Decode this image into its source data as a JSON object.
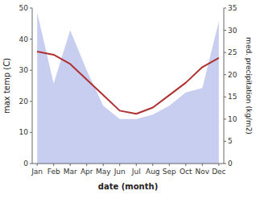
{
  "chart_data": {
    "type": "line",
    "xlabel": "date (month)",
    "ylabel": "max temp (C)",
    "y2label": "med. precipitation (kg/m2)",
    "categories": [
      "Jan",
      "Feb",
      "Mar",
      "Apr",
      "May",
      "Jun",
      "Jul",
      "Aug",
      "Sep",
      "Oct",
      "Nov",
      "Dec"
    ],
    "series": [
      {
        "type": "area",
        "axis": "y2",
        "color": "#aab4e8",
        "values": [
          34,
          18,
          30,
          21,
          13,
          10,
          10,
          11,
          13,
          16,
          17,
          32
        ]
      },
      {
        "type": "line",
        "color": "#b03030",
        "values": [
          36,
          35,
          32,
          27,
          22,
          17,
          16,
          18,
          22,
          26,
          31,
          34
        ]
      }
    ],
    "ylim": [
      0,
      50
    ],
    "yticks": [
      0,
      10,
      20,
      30,
      40,
      50
    ],
    "y2lim": [
      0,
      35
    ],
    "y2ticks": [
      0,
      5,
      10,
      15,
      20,
      25,
      30,
      35
    ]
  }
}
